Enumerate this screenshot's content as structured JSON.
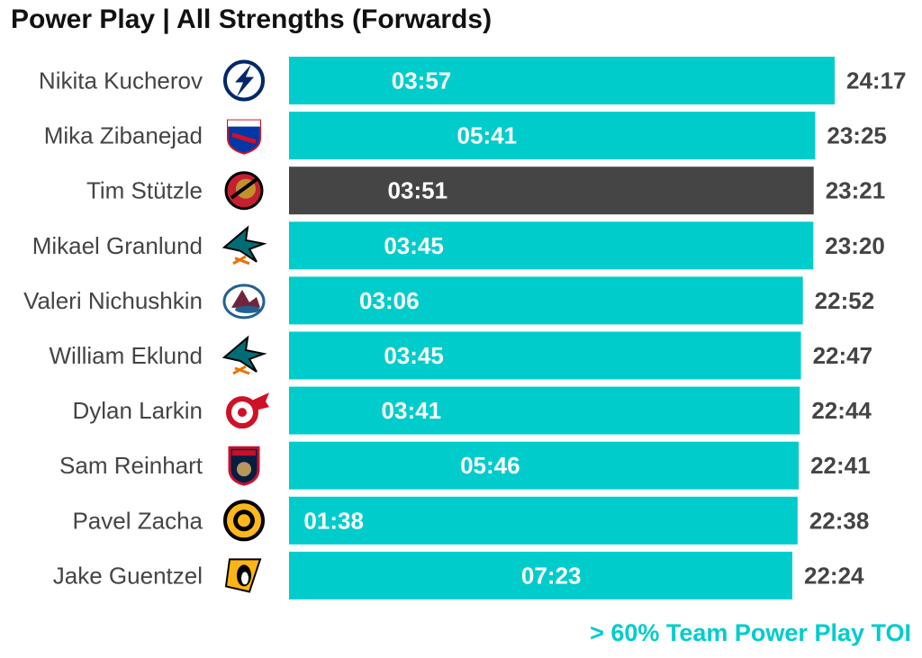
{
  "title": "Power Play | All Strengths (Forwards)",
  "footnote": "> 60% Team Power Play TOI",
  "colors": {
    "highlight": "#00CCCC",
    "default": "#454545",
    "footnote": "#00CCCC"
  },
  "chart_data": {
    "type": "bar",
    "orientation": "horizontal",
    "title": "Power Play | All Strengths (Forwards)",
    "value_unit": "minutes",
    "categories": [
      "Nikita Kucherov",
      "Mika Zibanejad",
      "Tim Stützle",
      "Mikael Granlund",
      "Valeri Nichushkin",
      "William Eklund",
      "Dylan Larkin",
      "Sam Reinhart",
      "Pavel Zacha",
      "Jake Guentzel"
    ],
    "teams": [
      "tampa-bay-lightning",
      "new-york-rangers",
      "ottawa-senators",
      "san-jose-sharks",
      "colorado-avalanche",
      "san-jose-sharks",
      "detroit-red-wings",
      "florida-panthers",
      "boston-bruins",
      "pittsburgh-penguins"
    ],
    "series": [
      {
        "name": "TOI",
        "values": [
          24.283,
          23.417,
          23.35,
          23.333,
          22.867,
          22.783,
          22.733,
          22.683,
          22.633,
          22.4
        ],
        "labels": [
          "24:17",
          "23:25",
          "23:21",
          "23:20",
          "22:52",
          "22:47",
          "22:44",
          "22:41",
          "22:38",
          "22:24"
        ]
      },
      {
        "name": "PP TOI",
        "values": [
          3.95,
          5.683,
          3.85,
          3.75,
          3.1,
          3.75,
          3.683,
          5.767,
          1.633,
          7.383
        ],
        "labels": [
          "03:57",
          "05:41",
          "03:51",
          "03:45",
          "03:06",
          "03:45",
          "03:41",
          "05:46",
          "01:38",
          "07:23"
        ]
      }
    ],
    "above_60pct_team_pp_toi": [
      true,
      true,
      false,
      true,
      true,
      true,
      true,
      true,
      true,
      true
    ],
    "xlim": [
      0,
      24.283
    ],
    "grid": false,
    "legend": "none"
  }
}
